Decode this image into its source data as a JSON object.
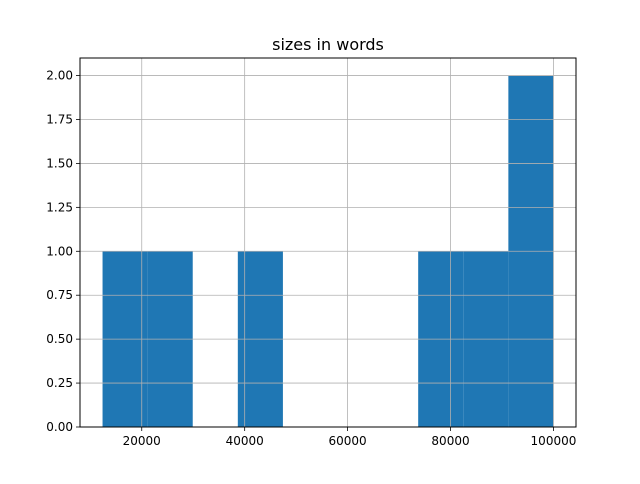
{
  "chart_data": {
    "type": "bar",
    "subtype": "histogram",
    "title": "sizes in words",
    "xlabel": "",
    "ylabel": "",
    "bin_edges": [
      12383,
      21145,
      29906,
      38668,
      47430,
      56191,
      64953,
      73715,
      82477,
      91238,
      100000
    ],
    "counts": [
      1,
      1,
      0,
      1,
      0,
      0,
      0,
      1,
      1,
      2
    ],
    "xlim": [
      8002,
      104381
    ],
    "ylim": [
      0,
      2.1
    ],
    "xticks": [
      20000,
      40000,
      60000,
      80000,
      100000
    ],
    "xtick_labels": [
      "20000",
      "40000",
      "60000",
      "80000",
      "100000"
    ],
    "yticks": [
      0,
      0.25,
      0.5,
      0.75,
      1.0,
      1.25,
      1.5,
      1.75,
      2.0
    ],
    "ytick_labels": [
      "0.00",
      "0.25",
      "0.50",
      "0.75",
      "1.00",
      "1.25",
      "1.50",
      "1.75",
      "2.00"
    ],
    "grid": true,
    "bar_color": "#1f77b4",
    "grid_color": "#b0b0b0"
  }
}
